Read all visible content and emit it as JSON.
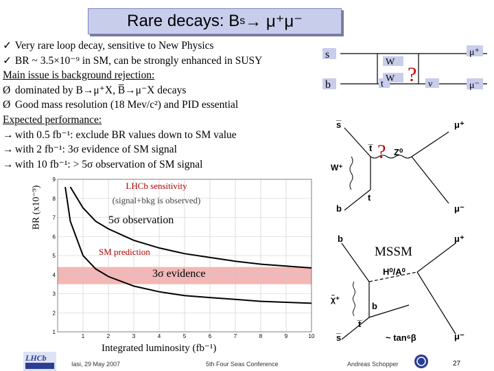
{
  "title": {
    "main": "Rare decays: B",
    "sub": "s",
    "arrow": " → μ⁺μ⁻"
  },
  "bullets": [
    {
      "mark": "✓",
      "text": "Very rare loop decay, sensitive to New Physics"
    },
    {
      "mark": "✓",
      "text": "BR ~ 3.5×10⁻⁹ in SM, can be strongly enhanced in SUSY"
    },
    {
      "mark": "",
      "text": "Main issue is background rejection:",
      "underline": true
    },
    {
      "mark": "Ø",
      "text": "dominated by B→μ⁺X, B̅→μ⁻X decays"
    },
    {
      "mark": "Ø",
      "text": "Good mass resolution (18 Mev/c²) and PID essential"
    },
    {
      "mark": "",
      "text": "Expected performance:",
      "underline": true
    },
    {
      "mark": "→",
      "text": "with 0.5 fb⁻¹:  exclude BR values down to SM value"
    },
    {
      "mark": "→",
      "text": "with   2 fb⁻¹:  3σ evidence of SM signal"
    },
    {
      "mark": "→",
      "text": "with  10 fb⁻¹:  > 5σ observation of SM signal"
    }
  ],
  "chart_data": {
    "type": "line",
    "title": "LHCb sensitivity",
    "subtitle": "(signal+bkg is observed)",
    "xlabel": "Integrated luminosity (fb⁻¹)",
    "ylabel": "BR (x10⁻⁹)",
    "xlim": [
      0,
      10
    ],
    "ylim": [
      1,
      9
    ],
    "x_ticks": [
      1,
      2,
      3,
      4,
      5,
      6,
      7,
      8,
      9,
      10
    ],
    "y_ticks": [
      1,
      2,
      3,
      4,
      5,
      6,
      7,
      8,
      9
    ],
    "grid": true,
    "series": [
      {
        "name": "5σ observation",
        "x": [
          0.5,
          1,
          1.5,
          2,
          3,
          4,
          5,
          6,
          7,
          8,
          9,
          10
        ],
        "y": [
          8.6,
          7.5,
          6.8,
          6.4,
          5.8,
          5.4,
          5.1,
          4.9,
          4.7,
          4.55,
          4.45,
          4.35
        ]
      },
      {
        "name": "3σ evidence",
        "x": [
          0.3,
          0.5,
          1,
          1.5,
          2,
          3,
          4,
          5,
          6,
          7,
          8,
          9,
          10
        ],
        "y": [
          8.6,
          6.8,
          5.0,
          4.3,
          3.9,
          3.4,
          3.1,
          2.9,
          2.8,
          2.7,
          2.6,
          2.55,
          2.5
        ]
      }
    ],
    "band": {
      "label": "SM prediction",
      "y": [
        3.5,
        4.4
      ]
    },
    "annotations": [
      "5σ observation",
      "3σ evidence"
    ]
  },
  "diagrams": {
    "box": {
      "s": "s",
      "b": "b",
      "t": "t",
      "w_top": "W",
      "w_bot": "W",
      "mu_plus": "μ⁺",
      "mu_minus": "μ⁻",
      "nu": "ν",
      "question": "?"
    },
    "penguin": {
      "s_bar": "s̅",
      "b": "b",
      "t_bar": "t̅",
      "t": "t",
      "w_plus": "W⁺",
      "z0": "Z⁰",
      "mu_plus": "μ⁺",
      "mu_minus": "μ⁻",
      "question": "?"
    },
    "mssm": {
      "label": "MSSM",
      "b": "b",
      "b_out": "b",
      "t_bar": "t̅",
      "chi": "χ̃⁺",
      "h": "H⁰/A⁰",
      "s_bar": "s̅",
      "mu_plus": "μ⁺",
      "mu_minus": "μ⁻",
      "tanb": "~ tan⁶β"
    }
  },
  "footer": {
    "left": "Iasi, 29 May 2007",
    "center": "5th Four Seas Conference",
    "right": "Andreas Schopper",
    "page": "27",
    "logo": "LHCb"
  },
  "colors": {
    "title_bg": "#c9cdec",
    "sm_band": "#f4b6b6",
    "question": "#c00000",
    "grid": "#c8c8c8"
  }
}
